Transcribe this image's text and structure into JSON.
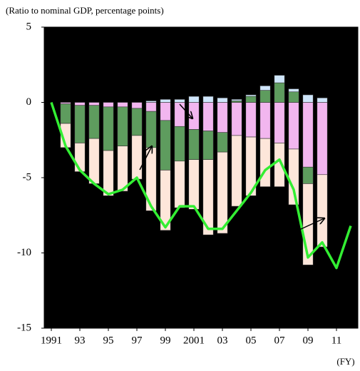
{
  "chart_data": {
    "type": "bar",
    "subtitle": "(Ratio to nominal GDP, percentage points)",
    "x_unit": "(FY)",
    "x": [
      1992,
      1993,
      1994,
      1995,
      1996,
      1997,
      1998,
      1999,
      2000,
      2001,
      2002,
      2003,
      2004,
      2005,
      2006,
      2007,
      2008,
      2009,
      2010
    ],
    "series": [
      {
        "type": "bar",
        "color": "#f2b6ef",
        "values": [
          -0.1,
          -0.2,
          -0.2,
          -0.3,
          -0.3,
          -0.4,
          -0.6,
          -1.2,
          -1.6,
          -1.8,
          -1.9,
          -2.0,
          -2.2,
          -2.3,
          -2.4,
          -2.7,
          -3.1,
          -4.3,
          -4.8
        ]
      },
      {
        "type": "bar",
        "color": "#5e9c5e",
        "values": [
          -1.3,
          -2.5,
          -2.2,
          -2.9,
          -2.6,
          -1.8,
          -2.4,
          -3.3,
          -2.3,
          -2.0,
          -1.9,
          -1.3,
          0.1,
          0.4,
          0.8,
          1.3,
          0.7,
          -1.1,
          0
        ]
      },
      {
        "type": "bar",
        "color": "#fde6da",
        "values": [
          -1.6,
          -1.9,
          -3.0,
          -3.0,
          -3.0,
          -2.9,
          -4.2,
          -4.0,
          -3.1,
          -3.3,
          -5.0,
          -5.4,
          -4.7,
          -3.9,
          -3.2,
          -2.9,
          -3.7,
          -5.4,
          -4.8
        ]
      },
      {
        "type": "bar",
        "color": "#cfe6fb",
        "values": [
          0,
          0,
          0,
          0,
          0,
          0,
          0.1,
          0.2,
          0.2,
          0.4,
          0.4,
          0.3,
          0.1,
          0.1,
          0.3,
          0.5,
          0.2,
          0.5,
          0.3
        ]
      },
      {
        "type": "line",
        "color": "#33ee33",
        "x": [
          1991,
          1992,
          1993,
          1994,
          1995,
          1996,
          1997,
          1998,
          1999,
          2000,
          2001,
          2002,
          2003,
          2004,
          2005,
          2006,
          2007,
          2008,
          2009,
          2010,
          2011,
          2012
        ],
        "values": [
          0,
          -2.9,
          -4.5,
          -5.4,
          -6.1,
          -5.8,
          -5.0,
          -6.9,
          -8.3,
          -6.9,
          -6.9,
          -8.4,
          -8.4,
          -7.2,
          -6.0,
          -4.5,
          -3.8,
          -5.8,
          -10.3,
          -9.3,
          -11.0,
          -8.2
        ]
      }
    ],
    "xlim": [
      1990.5,
      2012.5
    ],
    "xticks": [
      1991,
      {
        "value": 1993,
        "label": "93"
      },
      {
        "value": 1995,
        "label": "95"
      },
      {
        "value": 1997,
        "label": "97"
      },
      {
        "value": 1999,
        "label": "99"
      },
      2001,
      {
        "value": 2003,
        "label": "03"
      },
      {
        "value": 2005,
        "label": "05"
      },
      {
        "value": 2007,
        "label": "07"
      },
      {
        "value": 2009,
        "label": "09"
      },
      {
        "value": 2011,
        "label": "11"
      }
    ],
    "ylim": [
      -15,
      5
    ],
    "yticks": [
      5,
      0,
      -5,
      -10,
      -15
    ],
    "background": "#000000"
  }
}
